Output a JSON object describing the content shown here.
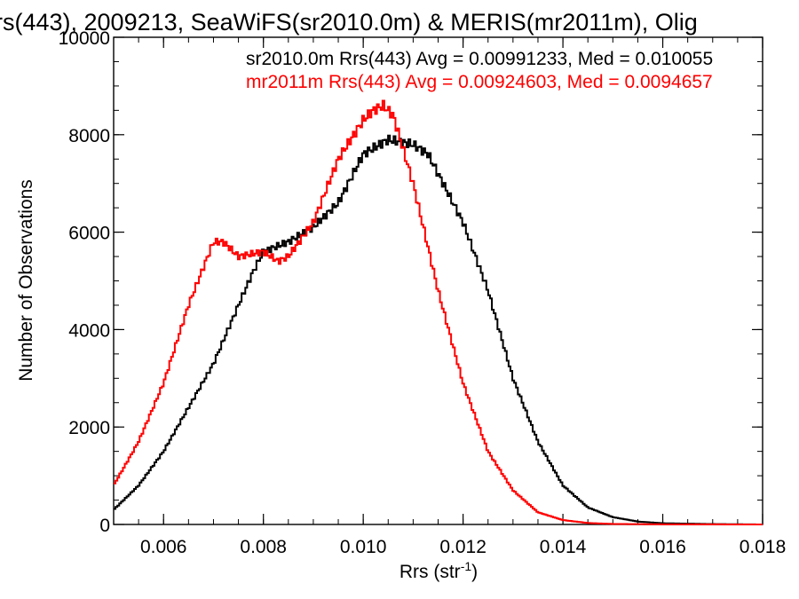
{
  "chart_data": {
    "type": "line",
    "title": "rs(443), 2009213, SeaWiFS(sr2010.0m) & MERIS(mr2011m), Olig",
    "xlabel": "Rrs (str",
    "xlabel_sup": "-1",
    "xlabel_close": ")",
    "ylabel": "Number of Observations",
    "xlim": [
      0.005,
      0.018
    ],
    "ylim": [
      0,
      10000
    ],
    "x_ticks": [
      0.006,
      0.008,
      0.01,
      0.012,
      0.014,
      0.016,
      0.018
    ],
    "x_tick_labels": [
      "0.006",
      "0.008",
      "0.010",
      "0.012",
      "0.014",
      "0.016",
      "0.018"
    ],
    "y_ticks": [
      0,
      2000,
      4000,
      6000,
      8000,
      10000
    ],
    "y_tick_labels": [
      "0",
      "2000",
      "4000",
      "6000",
      "8000",
      "10000"
    ],
    "annotations": [
      {
        "text": "sr2010.0m Rrs(443) Avg = 0.00991233, Med = 0.010055",
        "color": "#000000"
      },
      {
        "text": "mr2011m Rrs(443) Avg = 0.00924603, Med = 0.0094657",
        "color": "#ff0000"
      }
    ],
    "series": [
      {
        "color": "#000000",
        "x": [
          0.005,
          0.0055,
          0.006,
          0.0065,
          0.007,
          0.0075,
          0.0078,
          0.008,
          0.0085,
          0.009,
          0.0095,
          0.01,
          0.0105,
          0.011,
          0.0113,
          0.0116,
          0.012,
          0.0125,
          0.013,
          0.0135,
          0.014,
          0.0145,
          0.015,
          0.0155,
          0.016,
          0.017,
          0.018
        ],
        "y": [
          300,
          800,
          1500,
          2400,
          3300,
          4500,
          5200,
          5600,
          5800,
          6100,
          6600,
          7600,
          7900,
          7800,
          7600,
          7000,
          6200,
          4800,
          3000,
          1700,
          800,
          350,
          150,
          60,
          25,
          8,
          0
        ]
      },
      {
        "color": "#ff0000",
        "x": [
          0.005,
          0.0055,
          0.006,
          0.0065,
          0.007,
          0.0072,
          0.0075,
          0.008,
          0.0083,
          0.0085,
          0.009,
          0.0095,
          0.01,
          0.0102,
          0.0104,
          0.0106,
          0.011,
          0.0115,
          0.012,
          0.0125,
          0.013,
          0.0135,
          0.014,
          0.0145,
          0.015,
          0.016,
          0.018
        ],
        "y": [
          800,
          1700,
          2900,
          4500,
          5800,
          5800,
          5500,
          5600,
          5400,
          5500,
          6200,
          7500,
          8300,
          8500,
          8600,
          8400,
          7000,
          4800,
          2900,
          1500,
          700,
          250,
          90,
          30,
          10,
          3,
          0
        ]
      }
    ]
  }
}
